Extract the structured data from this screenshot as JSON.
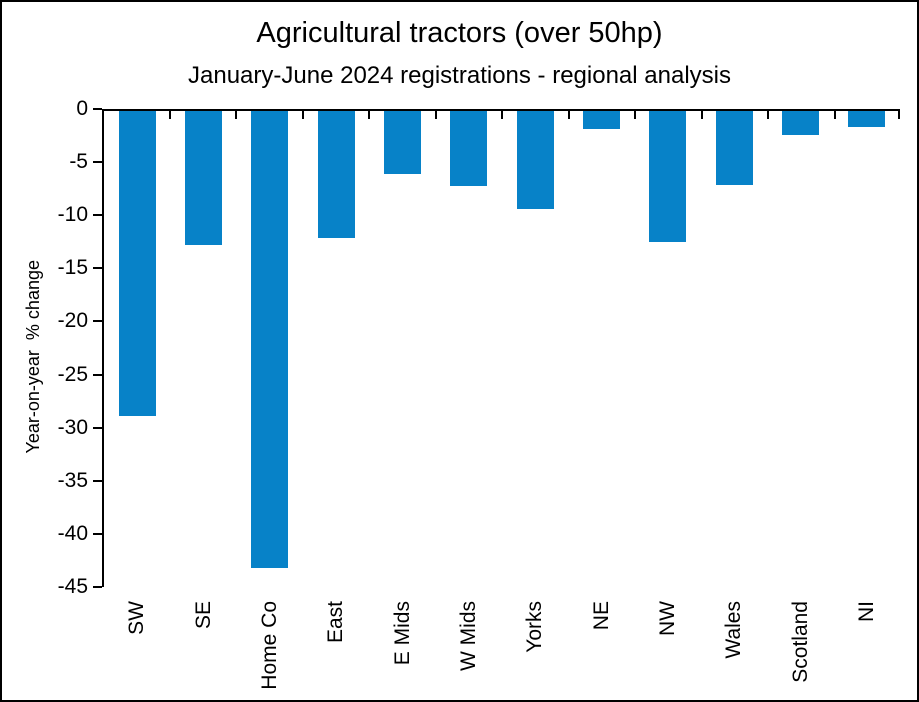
{
  "title": "Agricultural tractors (over 50hp)",
  "subtitle": "January-June 2024 registrations - regional analysis",
  "chart_data": {
    "type": "bar",
    "title": "Agricultural tractors (over 50hp)",
    "subtitle": "January-June 2024 registrations - regional analysis",
    "categories": [
      "SW",
      "SE",
      "Home Co",
      "East",
      "E Mids",
      "W Mids",
      "Yorks",
      "NE",
      "NW",
      "Wales",
      "Scotland",
      "NI"
    ],
    "values": [
      -28.8,
      -12.7,
      -43.2,
      -12.0,
      -6.0,
      -7.1,
      -9.3,
      -1.7,
      -12.4,
      -7.0,
      -2.3,
      -1.5
    ],
    "xlabel": "",
    "ylabel": "Year-on-year  % change",
    "ylim": [
      -45,
      0
    ],
    "yticks": [
      "0",
      "-5",
      "-10",
      "-15",
      "-20",
      "-25",
      "-30",
      "-35",
      "-40",
      "-45"
    ],
    "ytick_values": [
      0,
      -5,
      -10,
      -15,
      -20,
      -25,
      -30,
      -35,
      -40,
      -45
    ],
    "grid": false,
    "legend": null,
    "bar_color": "#0782C8",
    "axis_color": "#000000",
    "background_color": "#FFFFFF"
  }
}
